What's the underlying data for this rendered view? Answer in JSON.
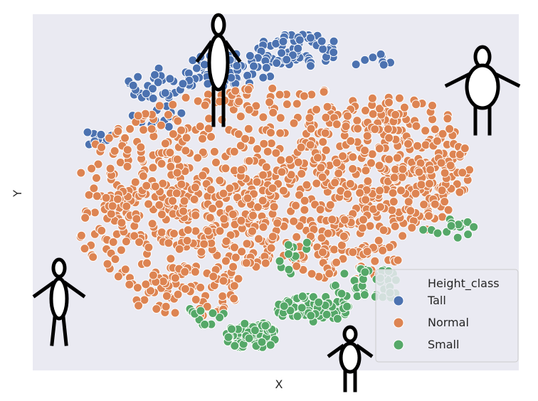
{
  "chart_data": {
    "type": "scatter",
    "title": "",
    "xlabel": "X",
    "ylabel": "Y",
    "grid": false,
    "axis_ticks": false,
    "background": "#eaeaf2",
    "legend": {
      "title": "Height_class",
      "placement": "bottom-right",
      "entries": [
        {
          "name": "Tall",
          "color": "#4c72b0"
        },
        {
          "name": "Normal",
          "color": "#dd8452"
        },
        {
          "name": "Small",
          "color": "#55a868"
        }
      ]
    },
    "series": [
      {
        "name": "Tall",
        "color": "#4c72b0",
        "clusters": [
          {
            "cx": 0.55,
            "cy": 0.92,
            "rx": 0.09,
            "ry": 0.05,
            "n": 75
          },
          {
            "cx": 0.4,
            "cy": 0.86,
            "rx": 0.1,
            "ry": 0.05,
            "n": 60
          },
          {
            "cx": 0.25,
            "cy": 0.82,
            "rx": 0.08,
            "ry": 0.05,
            "n": 35
          },
          {
            "cx": 0.12,
            "cy": 0.66,
            "rx": 0.03,
            "ry": 0.03,
            "n": 10
          },
          {
            "cx": 0.25,
            "cy": 0.72,
            "rx": 0.06,
            "ry": 0.04,
            "n": 12
          },
          {
            "cx": 0.72,
            "cy": 0.88,
            "rx": 0.05,
            "ry": 0.03,
            "n": 8
          }
        ]
      },
      {
        "name": "Normal",
        "color": "#dd8452",
        "clusters": [
          {
            "cx": 0.5,
            "cy": 0.55,
            "rx": 0.42,
            "ry": 0.26,
            "n": 700
          },
          {
            "cx": 0.3,
            "cy": 0.38,
            "rx": 0.22,
            "ry": 0.18,
            "n": 200
          },
          {
            "cx": 0.75,
            "cy": 0.6,
            "rx": 0.17,
            "ry": 0.18,
            "n": 150
          },
          {
            "cx": 0.3,
            "cy": 0.2,
            "rx": 0.12,
            "ry": 0.08,
            "n": 60
          },
          {
            "cx": 0.65,
            "cy": 0.32,
            "rx": 0.12,
            "ry": 0.1,
            "n": 80
          }
        ]
      },
      {
        "name": "Small",
        "color": "#55a868",
        "clusters": [
          {
            "cx": 0.45,
            "cy": 0.07,
            "rx": 0.06,
            "ry": 0.04,
            "n": 80
          },
          {
            "cx": 0.58,
            "cy": 0.15,
            "rx": 0.08,
            "ry": 0.04,
            "n": 70
          },
          {
            "cx": 0.7,
            "cy": 0.22,
            "rx": 0.08,
            "ry": 0.05,
            "n": 40
          },
          {
            "cx": 0.87,
            "cy": 0.38,
            "rx": 0.06,
            "ry": 0.04,
            "n": 15
          },
          {
            "cx": 0.55,
            "cy": 0.3,
            "rx": 0.05,
            "ry": 0.05,
            "n": 12
          },
          {
            "cx": 0.35,
            "cy": 0.13,
            "rx": 0.05,
            "ry": 0.03,
            "n": 12
          }
        ]
      }
    ]
  },
  "figures": [
    {
      "icon": "tall-person-icon"
    },
    {
      "icon": "wide-person-icon"
    },
    {
      "icon": "thin-person-icon"
    },
    {
      "icon": "small-person-icon"
    }
  ]
}
